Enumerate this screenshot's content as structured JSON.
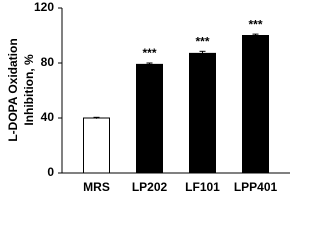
{
  "chart_data": {
    "type": "bar",
    "ylabel": [
      "L-DOPA Oxidation",
      "Inhibition, %"
    ],
    "categories": [
      "MRS",
      "LP202",
      "LF101",
      "LPP401"
    ],
    "values": [
      40,
      79,
      87,
      100
    ],
    "errors": [
      0.5,
      1,
      1.5,
      1
    ],
    "annotations": [
      null,
      "***",
      "***",
      "***"
    ],
    "colors": [
      "#ffffff",
      "#000000",
      "#000000",
      "#000000"
    ],
    "ylim": [
      0,
      120
    ],
    "yticks": [
      0,
      40,
      80,
      120
    ],
    "grid": false
  }
}
